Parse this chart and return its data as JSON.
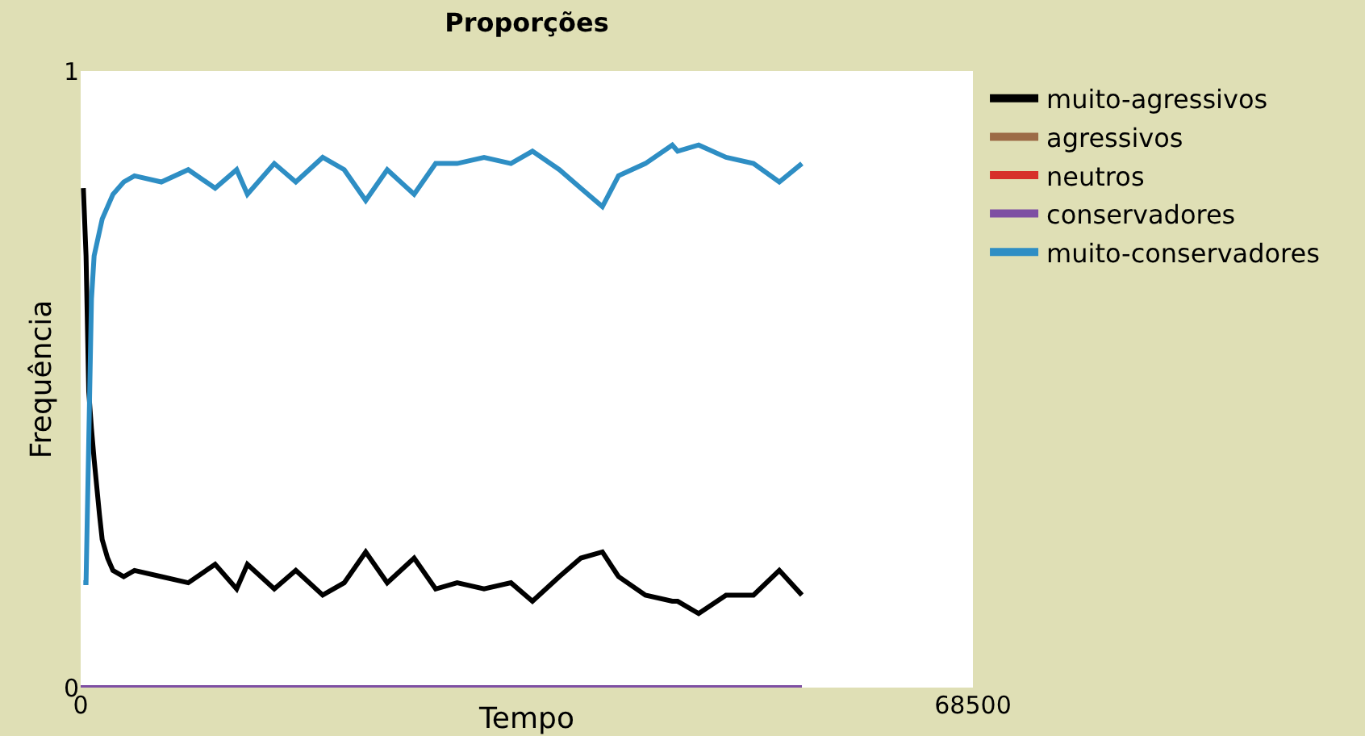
{
  "chart_data": {
    "type": "line",
    "title": "Proporções",
    "xlabel": "Tempo",
    "ylabel": "Frequência",
    "x": [
      206,
      413,
      619,
      830,
      1032,
      1445,
      1652,
      2064,
      2477,
      3303,
      4130,
      6194,
      8258,
      10323,
      11975,
      12800,
      14864,
      16516,
      18581,
      20232,
      21884,
      23535,
      25600,
      27251,
      28903,
      30968,
      33032,
      34684,
      36748,
      38400,
      40052,
      41290,
      43355,
      45419,
      45832,
      47443,
      49548,
      51652,
      53636,
      55371
    ],
    "series": [
      {
        "name": "muito-agressivos",
        "color": "#000000",
        "values": [
          0.81,
          0.7,
          0.48,
          0.42,
          0.37,
          0.28,
          0.24,
          0.21,
          0.19,
          0.18,
          0.19,
          0.18,
          0.17,
          0.2,
          0.16,
          0.2,
          0.16,
          0.19,
          0.15,
          0.17,
          0.22,
          0.17,
          0.21,
          0.16,
          0.17,
          0.16,
          0.17,
          0.14,
          0.18,
          0.21,
          0.22,
          0.18,
          0.15,
          0.14,
          0.14,
          0.12,
          0.15,
          0.15,
          0.19,
          0.15
        ]
      },
      {
        "name": "agressivos",
        "color": "#9c6b46",
        "values": [
          null,
          null,
          null,
          null,
          null,
          null,
          null,
          null,
          null,
          null,
          null,
          null,
          null,
          null,
          null,
          null,
          null,
          null,
          null,
          null,
          null,
          null,
          null,
          null,
          null,
          null,
          null,
          null,
          null,
          null,
          null,
          null,
          null,
          null,
          null,
          null,
          null,
          null,
          null,
          null
        ]
      },
      {
        "name": "neutros",
        "color": "#d7302a",
        "values": [
          null,
          null,
          null,
          null,
          null,
          null,
          null,
          null,
          null,
          null,
          null,
          null,
          null,
          null,
          null,
          null,
          null,
          null,
          null,
          null,
          null,
          null,
          null,
          null,
          null,
          null,
          null,
          null,
          null,
          null,
          null,
          null,
          null,
          null,
          null,
          null,
          null,
          null,
          null,
          null
        ]
      },
      {
        "name": "conservadores",
        "color": "#7e4fa3",
        "x": [
          0,
          55371
        ],
        "values": [
          0,
          0
        ]
      },
      {
        "name": "muito-conservadores",
        "color": "#2e8ec4",
        "values": [
          0.17,
          0.17,
          0.4,
          0.63,
          0.7,
          0.74,
          0.76,
          0.78,
          0.8,
          0.82,
          0.83,
          0.82,
          0.84,
          0.81,
          0.84,
          0.8,
          0.85,
          0.82,
          0.86,
          0.84,
          0.79,
          0.84,
          0.8,
          0.85,
          0.85,
          0.86,
          0.85,
          0.87,
          0.84,
          0.81,
          0.78,
          0.83,
          0.85,
          0.88,
          0.87,
          0.88,
          0.86,
          0.85,
          0.82,
          0.85
        ]
      }
    ],
    "xlim": [
      0,
      68500
    ],
    "xticks": [
      0,
      68500
    ],
    "ylim": [
      0,
      1
    ],
    "yticks": [
      0,
      1
    ],
    "legend": "right",
    "line_style": "solid"
  }
}
